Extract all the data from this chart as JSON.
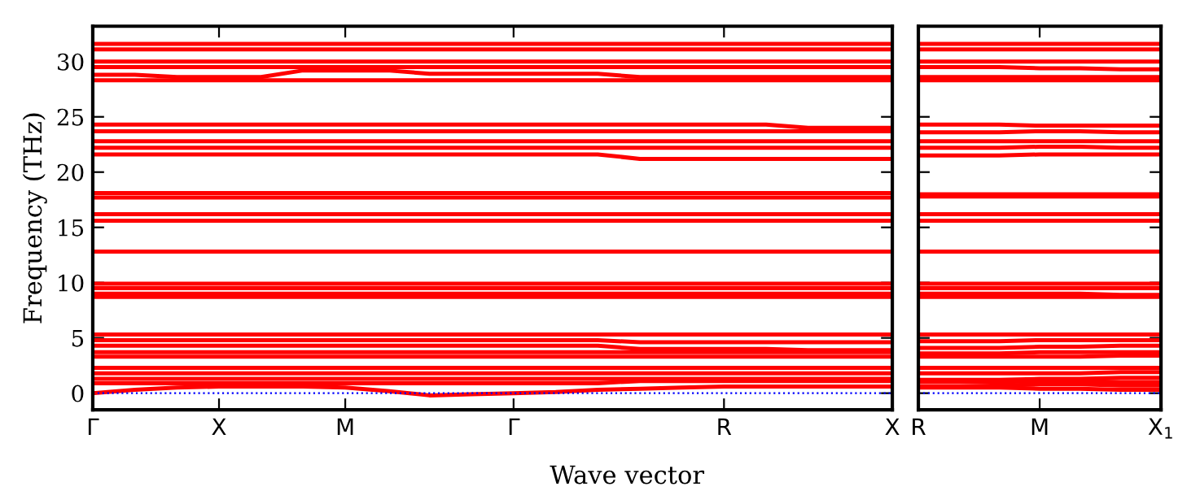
{
  "chart_data": [
    {
      "type": "line",
      "xlabel": "Wave vector",
      "ylabel": "Frequency (THz)",
      "categories": [
        "Γ",
        null,
        null,
        "X",
        null,
        null,
        "M",
        null,
        null,
        null,
        "Γ",
        null,
        null,
        null,
        null,
        "R",
        null,
        null,
        null,
        "X"
      ],
      "ylim": [
        -1.5,
        33.2
      ],
      "yticks": [
        0,
        5,
        10,
        15,
        20,
        25,
        30
      ],
      "marker": "none",
      "line_style": "solid",
      "ref_lines": [
        {
          "axis": "y",
          "value": 0,
          "label": null,
          "color": "#0000ff",
          "line_style": "dotted"
        }
      ],
      "series": [
        {
          "color": "#ff0000",
          "values": [
            31.6,
            31.6,
            31.6,
            31.6,
            31.6,
            31.6,
            31.6,
            31.6,
            31.6,
            31.6,
            31.6,
            31.6,
            31.6,
            31.6,
            31.6,
            31.6,
            31.6,
            31.6,
            31.6,
            31.6
          ]
        },
        {
          "color": "#ff0000",
          "values": [
            31.1,
            31.1,
            31.1,
            31.1,
            31.1,
            31.1,
            31.1,
            31.1,
            31.1,
            31.1,
            31.1,
            31.1,
            31.1,
            31.1,
            31.1,
            31.1,
            31.1,
            31.1,
            31.1,
            31.1
          ]
        },
        {
          "color": "#ff0000",
          "values": [
            30.0,
            30.0,
            30.0,
            30.0,
            30.0,
            30.0,
            30.0,
            30.0,
            30.0,
            30.0,
            30.0,
            30.0,
            30.0,
            30.0,
            30.0,
            30.0,
            30.0,
            30.0,
            30.0,
            30.0
          ]
        },
        {
          "color": "#ff0000",
          "values": [
            29.5,
            29.5,
            29.5,
            29.5,
            29.5,
            29.5,
            29.5,
            29.5,
            29.5,
            29.5,
            29.5,
            29.5,
            29.5,
            29.5,
            29.5,
            29.5,
            29.5,
            29.5,
            29.5,
            29.5
          ]
        },
        {
          "color": "#ff0000",
          "values": [
            28.8,
            28.8,
            28.6,
            28.6,
            28.6,
            29.2,
            29.2,
            29.2,
            28.9,
            28.9,
            28.9,
            28.9,
            28.9,
            28.6,
            28.6,
            28.6,
            28.6,
            28.6,
            28.6,
            28.6
          ]
        },
        {
          "color": "#ff0000",
          "values": [
            28.3,
            28.3,
            28.3,
            28.3,
            28.3,
            28.3,
            28.3,
            28.3,
            28.3,
            28.3,
            28.3,
            28.3,
            28.3,
            28.3,
            28.3,
            28.3,
            28.3,
            28.3,
            28.3,
            28.3
          ]
        },
        {
          "color": "#ff0000",
          "values": [
            24.3,
            24.3,
            24.3,
            24.3,
            24.3,
            24.3,
            24.3,
            24.3,
            24.3,
            24.3,
            24.3,
            24.3,
            24.3,
            24.3,
            24.3,
            24.3,
            24.3,
            24.0,
            24.0,
            24.0
          ]
        },
        {
          "color": "#ff0000",
          "values": [
            23.7,
            23.7,
            23.7,
            23.7,
            23.7,
            23.7,
            23.7,
            23.7,
            23.7,
            23.7,
            23.7,
            23.7,
            23.7,
            23.7,
            23.7,
            23.7,
            23.7,
            23.7,
            23.7,
            23.7
          ]
        },
        {
          "color": "#ff0000",
          "values": [
            22.8,
            22.8,
            22.8,
            22.8,
            22.8,
            22.8,
            22.8,
            22.8,
            22.8,
            22.8,
            22.8,
            22.8,
            22.8,
            22.8,
            22.8,
            22.8,
            22.8,
            22.8,
            22.8,
            22.8
          ]
        },
        {
          "color": "#ff0000",
          "values": [
            22.2,
            22.2,
            22.2,
            22.2,
            22.2,
            22.2,
            22.2,
            22.2,
            22.2,
            22.2,
            22.2,
            22.2,
            22.2,
            22.2,
            22.2,
            22.2,
            22.2,
            22.2,
            22.2,
            22.2
          ]
        },
        {
          "color": "#ff0000",
          "values": [
            21.6,
            21.6,
            21.6,
            21.6,
            21.6,
            21.6,
            21.6,
            21.6,
            21.6,
            21.6,
            21.6,
            21.6,
            21.6,
            21.2,
            21.2,
            21.2,
            21.2,
            21.2,
            21.2,
            21.2
          ]
        },
        {
          "color": "#ff0000",
          "values": [
            18.1,
            18.1,
            18.1,
            18.1,
            18.1,
            18.1,
            18.1,
            18.1,
            18.1,
            18.1,
            18.1,
            18.1,
            18.1,
            18.1,
            18.1,
            18.1,
            18.1,
            18.1,
            18.1,
            18.1
          ]
        },
        {
          "color": "#ff0000",
          "values": [
            17.7,
            17.7,
            17.7,
            17.7,
            17.7,
            17.7,
            17.7,
            17.7,
            17.7,
            17.7,
            17.7,
            17.7,
            17.7,
            17.7,
            17.7,
            17.7,
            17.7,
            17.7,
            17.7,
            17.7
          ]
        },
        {
          "color": "#ff0000",
          "values": [
            16.2,
            16.2,
            16.2,
            16.2,
            16.2,
            16.2,
            16.2,
            16.2,
            16.2,
            16.2,
            16.2,
            16.2,
            16.2,
            16.2,
            16.2,
            16.2,
            16.2,
            16.2,
            16.2,
            16.2
          ]
        },
        {
          "color": "#ff0000",
          "values": [
            15.6,
            15.6,
            15.6,
            15.6,
            15.6,
            15.6,
            15.6,
            15.6,
            15.6,
            15.6,
            15.6,
            15.6,
            15.6,
            15.6,
            15.6,
            15.6,
            15.6,
            15.6,
            15.6,
            15.6
          ]
        },
        {
          "color": "#ff0000",
          "values": [
            12.8,
            12.8,
            12.8,
            12.8,
            12.8,
            12.8,
            12.8,
            12.8,
            12.8,
            12.8,
            12.8,
            12.8,
            12.8,
            12.8,
            12.8,
            12.8,
            12.8,
            12.8,
            12.8,
            12.8
          ]
        },
        {
          "color": "#ff0000",
          "values": [
            9.9,
            9.9,
            9.9,
            9.9,
            9.9,
            9.9,
            9.9,
            9.9,
            9.9,
            9.9,
            9.9,
            9.9,
            9.9,
            9.9,
            9.9,
            9.9,
            9.9,
            9.9,
            9.9,
            9.9
          ]
        },
        {
          "color": "#ff0000",
          "values": [
            9.5,
            9.5,
            9.5,
            9.5,
            9.5,
            9.5,
            9.5,
            9.5,
            9.5,
            9.5,
            9.5,
            9.5,
            9.5,
            9.5,
            9.5,
            9.5,
            9.5,
            9.5,
            9.5,
            9.5
          ]
        },
        {
          "color": "#ff0000",
          "values": [
            9.0,
            9.0,
            9.0,
            9.0,
            9.0,
            9.0,
            9.0,
            9.0,
            9.0,
            9.0,
            9.0,
            9.0,
            9.0,
            9.0,
            9.0,
            9.0,
            9.0,
            9.0,
            9.0,
            9.0
          ]
        },
        {
          "color": "#ff0000",
          "values": [
            8.7,
            8.7,
            8.7,
            8.7,
            8.7,
            8.7,
            8.7,
            8.7,
            8.7,
            8.7,
            8.7,
            8.7,
            8.7,
            8.7,
            8.7,
            8.7,
            8.7,
            8.7,
            8.7,
            8.7
          ]
        },
        {
          "color": "#ff0000",
          "values": [
            5.3,
            5.3,
            5.3,
            5.3,
            5.3,
            5.3,
            5.3,
            5.3,
            5.3,
            5.3,
            5.3,
            5.3,
            5.3,
            5.3,
            5.3,
            5.3,
            5.3,
            5.3,
            5.3,
            5.3
          ]
        },
        {
          "color": "#ff0000",
          "values": [
            4.8,
            4.8,
            4.8,
            4.8,
            4.8,
            4.8,
            4.8,
            4.8,
            4.8,
            4.8,
            4.8,
            4.8,
            4.8,
            4.6,
            4.6,
            4.6,
            4.6,
            4.6,
            4.6,
            4.6
          ]
        },
        {
          "color": "#ff0000",
          "values": [
            4.3,
            4.3,
            4.3,
            4.3,
            4.3,
            4.3,
            4.3,
            4.3,
            4.3,
            4.3,
            4.3,
            4.3,
            4.3,
            4.0,
            4.0,
            4.0,
            4.0,
            3.9,
            3.9,
            3.9
          ]
        },
        {
          "color": "#ff0000",
          "values": [
            3.7,
            3.7,
            3.7,
            3.7,
            3.7,
            3.7,
            3.7,
            3.7,
            3.7,
            3.7,
            3.7,
            3.7,
            3.7,
            3.7,
            3.7,
            3.7,
            3.7,
            3.7,
            3.7,
            3.7
          ]
        },
        {
          "color": "#ff0000",
          "values": [
            3.3,
            3.3,
            3.3,
            3.3,
            3.3,
            3.3,
            3.3,
            3.3,
            3.3,
            3.3,
            3.3,
            3.3,
            3.3,
            3.3,
            3.3,
            3.3,
            3.3,
            3.3,
            3.3,
            3.3
          ]
        },
        {
          "color": "#ff0000",
          "values": [
            2.3,
            2.3,
            2.3,
            2.3,
            2.3,
            2.3,
            2.3,
            2.3,
            2.3,
            2.3,
            2.3,
            2.3,
            2.3,
            2.3,
            2.3,
            2.3,
            2.3,
            2.3,
            2.3,
            2.3
          ]
        },
        {
          "color": "#ff0000",
          "values": [
            1.8,
            1.8,
            1.8,
            1.8,
            1.8,
            1.8,
            1.8,
            1.8,
            1.8,
            1.8,
            1.8,
            1.8,
            1.8,
            1.8,
            1.8,
            1.8,
            1.8,
            1.8,
            1.8,
            1.8
          ]
        },
        {
          "color": "#ff0000",
          "values": [
            1.3,
            1.3,
            1.3,
            1.3,
            1.3,
            1.3,
            1.3,
            1.3,
            1.3,
            1.3,
            1.3,
            1.3,
            1.3,
            1.3,
            1.3,
            1.3,
            1.3,
            1.3,
            1.3,
            1.3
          ]
        },
        {
          "color": "#ff0000",
          "values": [
            0.9,
            0.9,
            0.9,
            0.9,
            0.9,
            0.9,
            0.9,
            0.9,
            0.9,
            0.9,
            0.9,
            0.9,
            0.9,
            1.1,
            1.1,
            1.1,
            1.1,
            1.1,
            1.1,
            1.1
          ]
        },
        {
          "color": "#ff0000",
          "values": [
            0,
            0.3,
            0.5,
            0.6,
            0.6,
            0.6,
            0.5,
            0.2,
            -0.2,
            -0.1,
            0,
            0.1,
            0.3,
            0.4,
            0.5,
            0.6,
            0.6,
            0.6,
            0.6,
            0.6
          ]
        }
      ]
    },
    {
      "type": "line",
      "tick_labels": "x",
      "categories": [
        "R",
        null,
        null,
        "M",
        null,
        null,
        "X$_{1}$"
      ],
      "ylim": [
        -1.5,
        33.2
      ],
      "yticks": [
        0,
        5,
        10,
        15,
        20,
        25,
        30
      ],
      "marker": "none",
      "line_style": "solid",
      "ref_lines": [
        {
          "axis": "y",
          "value": 0,
          "label": null,
          "color": "#0000ff",
          "line_style": "dotted"
        }
      ],
      "series": [
        {
          "color": "#ff0000",
          "values": [
            31.6,
            31.6,
            31.6,
            31.6,
            31.6,
            31.6,
            31.6
          ]
        },
        {
          "color": "#ff0000",
          "values": [
            31.1,
            31.1,
            31.1,
            31.1,
            31.1,
            31.1,
            31.1
          ]
        },
        {
          "color": "#ff0000",
          "values": [
            30.0,
            30.0,
            30.0,
            30.0,
            30.0,
            30.0,
            30.0
          ]
        },
        {
          "color": "#ff0000",
          "values": [
            29.5,
            29.5,
            29.5,
            29.4,
            29.4,
            29.3,
            29.3
          ]
        },
        {
          "color": "#ff0000",
          "values": [
            28.6,
            28.6,
            28.6,
            28.6,
            28.6,
            28.6,
            28.6
          ]
        },
        {
          "color": "#ff0000",
          "values": [
            28.3,
            28.3,
            28.3,
            28.3,
            28.3,
            28.3,
            28.3
          ]
        },
        {
          "color": "#ff0000",
          "values": [
            24.3,
            24.3,
            24.3,
            24.2,
            24.2,
            24.2,
            24.2
          ]
        },
        {
          "color": "#ff0000",
          "values": [
            23.6,
            23.6,
            23.6,
            23.7,
            23.7,
            23.6,
            23.6
          ]
        },
        {
          "color": "#ff0000",
          "values": [
            22.8,
            22.8,
            22.8,
            22.8,
            22.8,
            22.8,
            22.8
          ]
        },
        {
          "color": "#ff0000",
          "values": [
            22.2,
            22.2,
            22.2,
            22.3,
            22.3,
            22.2,
            22.2
          ]
        },
        {
          "color": "#ff0000",
          "values": [
            21.5,
            21.5,
            21.5,
            21.6,
            21.6,
            21.6,
            21.6
          ]
        },
        {
          "color": "#ff0000",
          "values": [
            18.0,
            18.0,
            18.0,
            18.0,
            18.0,
            18.0,
            18.0
          ]
        },
        {
          "color": "#ff0000",
          "values": [
            17.8,
            17.8,
            17.8,
            17.8,
            17.8,
            17.8,
            17.8
          ]
        },
        {
          "color": "#ff0000",
          "values": [
            16.2,
            16.2,
            16.2,
            16.2,
            16.2,
            16.2,
            16.2
          ]
        },
        {
          "color": "#ff0000",
          "values": [
            15.6,
            15.6,
            15.6,
            15.6,
            15.6,
            15.6,
            15.6
          ]
        },
        {
          "color": "#ff0000",
          "values": [
            12.8,
            12.8,
            12.8,
            12.8,
            12.8,
            12.8,
            12.8
          ]
        },
        {
          "color": "#ff0000",
          "values": [
            9.9,
            9.9,
            9.9,
            9.9,
            9.9,
            9.9,
            9.9
          ]
        },
        {
          "color": "#ff0000",
          "values": [
            9.5,
            9.5,
            9.5,
            9.5,
            9.5,
            9.5,
            9.5
          ]
        },
        {
          "color": "#ff0000",
          "values": [
            9.0,
            9.0,
            9.0,
            9.0,
            9.0,
            8.9,
            8.9
          ]
        },
        {
          "color": "#ff0000",
          "values": [
            8.7,
            8.7,
            8.7,
            8.7,
            8.7,
            8.7,
            8.7
          ]
        },
        {
          "color": "#ff0000",
          "values": [
            5.3,
            5.3,
            5.3,
            5.3,
            5.3,
            5.3,
            5.3
          ]
        },
        {
          "color": "#ff0000",
          "values": [
            4.7,
            4.7,
            4.7,
            4.8,
            4.8,
            4.8,
            4.8
          ]
        },
        {
          "color": "#ff0000",
          "values": [
            4.1,
            4.1,
            4.1,
            4.2,
            4.2,
            4.3,
            4.3
          ]
        },
        {
          "color": "#ff0000",
          "values": [
            3.6,
            3.6,
            3.6,
            3.7,
            3.7,
            3.7,
            3.7
          ]
        },
        {
          "color": "#ff0000",
          "values": [
            3.3,
            3.3,
            3.3,
            3.3,
            3.3,
            3.4,
            3.4
          ]
        },
        {
          "color": "#ff0000",
          "values": [
            2.3,
            2.3,
            2.3,
            2.3,
            2.3,
            2.3,
            2.3
          ]
        },
        {
          "color": "#ff0000",
          "values": [
            1.8,
            1.8,
            1.8,
            1.8,
            1.8,
            1.9,
            1.9
          ]
        },
        {
          "color": "#ff0000",
          "values": [
            1.2,
            1.2,
            1.2,
            1.3,
            1.3,
            1.4,
            1.4
          ]
        },
        {
          "color": "#ff0000",
          "values": [
            1.0,
            1.0,
            1.0,
            1.1,
            1.1,
            1.0,
            1.0
          ]
        },
        {
          "color": "#ff0000",
          "values": [
            0.6,
            0.6,
            0.7,
            0.8,
            0.8,
            0.7,
            0.7
          ]
        },
        {
          "color": "#ff0000",
          "values": [
            0.5,
            0.5,
            0.5,
            0.4,
            0.4,
            0.3,
            0.3
          ]
        }
      ]
    }
  ]
}
